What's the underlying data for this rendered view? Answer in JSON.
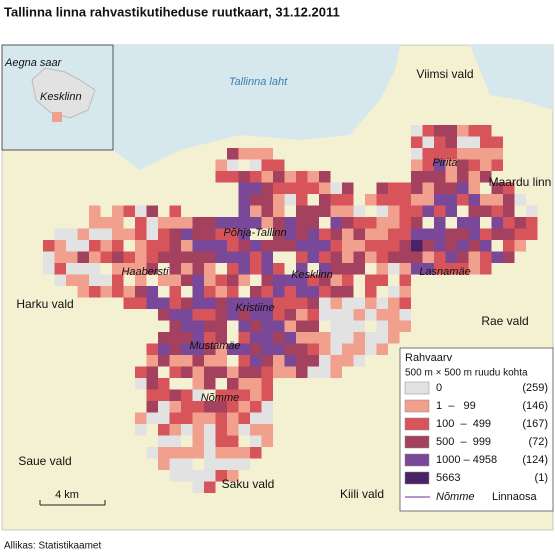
{
  "title": "Tallinna linna rahvastikutiheduse ruutkaart, 31.12.2011",
  "sea_label": "Tallinna laht",
  "inset": {
    "island": "Aegna saar",
    "district": "Kesklinn"
  },
  "places": [
    "Viimsi vald",
    "Maardu linn",
    "Harku vald",
    "Rae vald",
    "Saue vald",
    "Saku vald",
    "Kiili vald"
  ],
  "districts": [
    "Pirita",
    "Põhja-Tallinn",
    "Haabersti",
    "Kesklinn",
    "Lasnamäe",
    "Kristiine",
    "Mustamäe",
    "Nõmme"
  ],
  "scale_label": "4 km",
  "legend": {
    "title": "Rahvaarv",
    "subtitle": "500 m × 500 m ruudu kohta",
    "items": [
      {
        "range": "0",
        "count": "(259)",
        "color": "#e2e2e2"
      },
      {
        "range": "1  –   99",
        "count": "(146)",
        "color": "#f1a08e"
      },
      {
        "range": "100  –  499",
        "count": "(167)",
        "color": "#d8545b"
      },
      {
        "range": "500  –  999",
        "count": "(72)",
        "color": "#a4415f"
      },
      {
        "range": "1000 – 4958",
        "count": "(124)",
        "color": "#7a4898"
      },
      {
        "range": "5663",
        "count": "(1)",
        "color": "#4a2266"
      }
    ],
    "district_sample": "Nõmme",
    "district_label": "Linnaosa"
  },
  "source": "Allikas: Statistikaamet"
}
